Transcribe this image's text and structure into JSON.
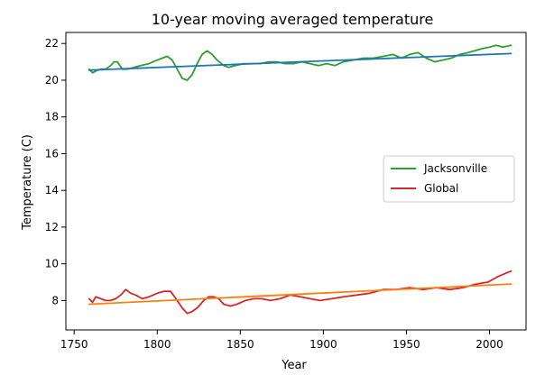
{
  "chart_data": {
    "type": "line",
    "title": "10-year moving averaged temperature",
    "xlabel": "Year",
    "ylabel": "Temperature (C)",
    "xlim": [
      1745,
      2022
    ],
    "ylim": [
      6.4,
      22.6
    ],
    "xticks": [
      1750,
      1800,
      1850,
      1900,
      1950,
      2000
    ],
    "yticks": [
      8,
      10,
      12,
      14,
      16,
      18,
      20,
      22
    ],
    "grid": false,
    "legend": {
      "placement": "center-right",
      "entries": [
        "Jacksonville",
        "Global"
      ]
    },
    "series": [
      {
        "name": "Jacksonville",
        "color": "#2ca02c",
        "x": [
          1759,
          1761,
          1763,
          1766,
          1769,
          1772,
          1774,
          1776,
          1779,
          1782,
          1786,
          1790,
          1795,
          1800,
          1803,
          1806,
          1809,
          1812,
          1815,
          1818,
          1821,
          1824,
          1827,
          1830,
          1833,
          1836,
          1840,
          1843,
          1847,
          1852,
          1857,
          1862,
          1867,
          1872,
          1877,
          1882,
          1887,
          1892,
          1897,
          1902,
          1907,
          1912,
          1918,
          1924,
          1930,
          1936,
          1942,
          1947,
          1952,
          1957,
          1962,
          1967,
          1972,
          1977,
          1982,
          1987,
          1991,
          1995,
          2000,
          2004,
          2008,
          2013
        ],
        "y": [
          20.6,
          20.4,
          20.5,
          20.6,
          20.6,
          20.8,
          21.0,
          21.0,
          20.6,
          20.6,
          20.7,
          20.8,
          20.9,
          21.1,
          21.2,
          21.3,
          21.1,
          20.6,
          20.1,
          20.0,
          20.3,
          20.9,
          21.4,
          21.6,
          21.4,
          21.1,
          20.8,
          20.7,
          20.8,
          20.9,
          20.9,
          20.9,
          21.0,
          21.0,
          20.9,
          20.9,
          21.0,
          20.9,
          20.8,
          20.9,
          20.8,
          21.0,
          21.1,
          21.2,
          21.2,
          21.3,
          21.4,
          21.2,
          21.4,
          21.5,
          21.2,
          21.0,
          21.1,
          21.2,
          21.4,
          21.5,
          21.6,
          21.7,
          21.8,
          21.9,
          21.8,
          21.9
        ]
      },
      {
        "name": "Global",
        "color": "#d62728",
        "x": [
          1759,
          1761,
          1763,
          1766,
          1769,
          1772,
          1775,
          1778,
          1781,
          1784,
          1787,
          1791,
          1795,
          1800,
          1804,
          1808,
          1812,
          1815,
          1818,
          1821,
          1824,
          1828,
          1831,
          1834,
          1837,
          1840,
          1844,
          1848,
          1853,
          1858,
          1863,
          1868,
          1874,
          1880,
          1886,
          1892,
          1898,
          1905,
          1912,
          1920,
          1928,
          1936,
          1944,
          1952,
          1960,
          1968,
          1976,
          1984,
          1992,
          1999,
          2005,
          2010,
          2013
        ],
        "y": [
          8.1,
          7.9,
          8.2,
          8.1,
          8.0,
          8.0,
          8.1,
          8.3,
          8.6,
          8.4,
          8.3,
          8.1,
          8.2,
          8.4,
          8.5,
          8.5,
          8.0,
          7.6,
          7.3,
          7.4,
          7.6,
          8.0,
          8.2,
          8.2,
          8.1,
          7.8,
          7.7,
          7.8,
          8.0,
          8.1,
          8.1,
          8.0,
          8.1,
          8.3,
          8.2,
          8.1,
          8.0,
          8.1,
          8.2,
          8.3,
          8.4,
          8.6,
          8.6,
          8.7,
          8.6,
          8.7,
          8.6,
          8.7,
          8.9,
          9.0,
          9.3,
          9.5,
          9.6
        ]
      },
      {
        "name": "",
        "color": "#1f77b4",
        "x": [
          1759,
          2013
        ],
        "y": [
          20.55,
          21.45
        ]
      },
      {
        "name": "",
        "color": "#ff7f0e",
        "x": [
          1759,
          2013
        ],
        "y": [
          7.8,
          8.9
        ]
      }
    ]
  }
}
